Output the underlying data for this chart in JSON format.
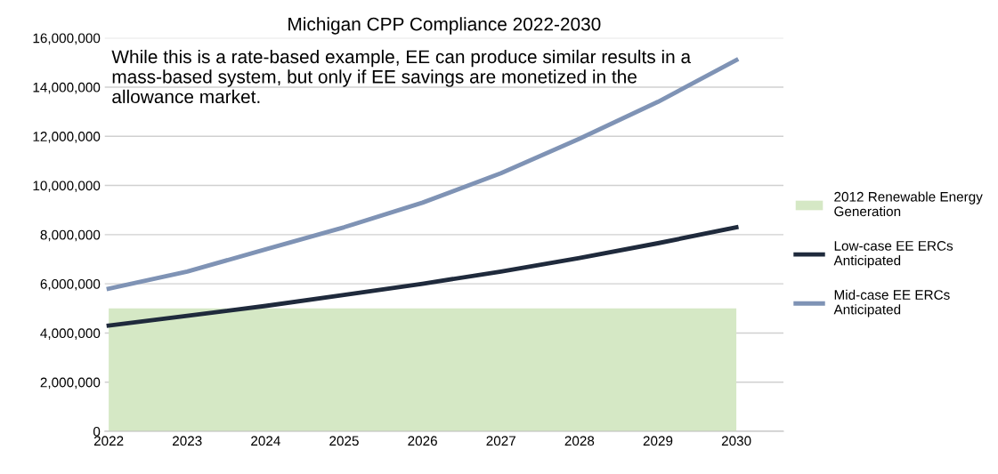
{
  "chart_data": {
    "type": "line",
    "title": "Michigan CPP Compliance 2022-2030",
    "categories": [
      "2022",
      "2023",
      "2024",
      "2025",
      "2026",
      "2027",
      "2028",
      "2029",
      "2030"
    ],
    "series": [
      {
        "name": "2012 Renewable Energy Generation",
        "type": "area",
        "color": "#d5e8c5",
        "values": [
          5000000,
          5000000,
          5000000,
          5000000,
          5000000,
          5000000,
          5000000,
          5000000,
          5000000
        ]
      },
      {
        "name": "Low-case EE ERCs Anticipated",
        "color": "#1f2a3c",
        "values": [
          4300000,
          4700000,
          5100000,
          5550000,
          6000000,
          6500000,
          7050000,
          7650000,
          8300000
        ]
      },
      {
        "name": "Mid-case EE ERCs Anticipated",
        "color": "#7f93b5",
        "values": [
          5800000,
          6500000,
          7400000,
          8300000,
          9300000,
          10500000,
          11900000,
          13400000,
          15100000
        ]
      }
    ],
    "ylim": [
      0,
      16000000
    ],
    "yticks": [
      {
        "value": 0,
        "label": "0"
      },
      {
        "value": 2000000,
        "label": "2,000,000"
      },
      {
        "value": 4000000,
        "label": "4,000,000"
      },
      {
        "value": 6000000,
        "label": "6,000,000"
      },
      {
        "value": 8000000,
        "label": "8,000,000"
      },
      {
        "value": 10000000,
        "label": "10,000,000"
      },
      {
        "value": 12000000,
        "label": "12,000,000"
      },
      {
        "value": 14000000,
        "label": "14,000,000"
      },
      {
        "value": 16000000,
        "label": "16,000,000"
      }
    ],
    "grid": "y",
    "legend": "right",
    "annotations": [
      "While this is a rate-based example, EE can produce similar results in a mass-based system, but only if EE savings are monetized in the allowance market."
    ]
  }
}
